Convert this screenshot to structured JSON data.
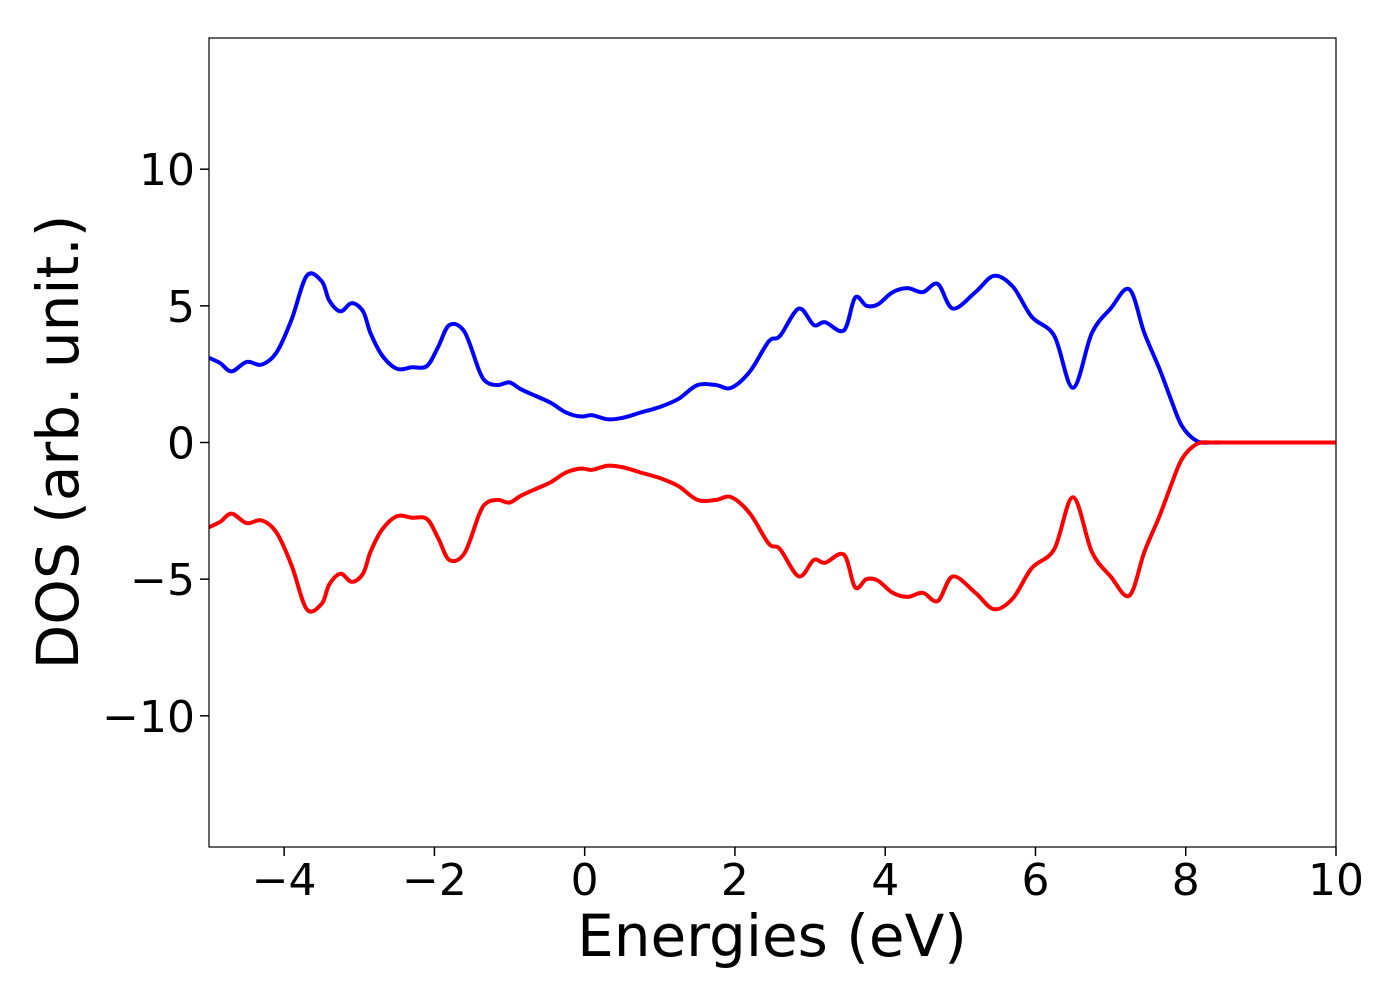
{
  "chart_data": {
    "type": "line",
    "title": "",
    "xlabel": "Energies (eV)",
    "ylabel": "DOS (arb. unit.)",
    "xlim": [
      -5,
      10
    ],
    "ylim": [
      -14.8,
      14.8
    ],
    "grid": false,
    "legend": "none",
    "xticks": [
      -4,
      -2,
      0,
      2,
      4,
      6,
      8,
      10
    ],
    "xtick_labels": [
      "−4",
      "−2",
      "0",
      "2",
      "4",
      "6",
      "8",
      "10"
    ],
    "yticks": [
      -10,
      -5,
      0,
      5,
      10
    ],
    "ytick_labels": [
      "−10",
      "−5",
      "0",
      "5",
      "10"
    ],
    "series": [
      {
        "color": "#0000ff",
        "x": [
          -5.0,
          -4.85,
          -4.7,
          -4.5,
          -4.3,
          -4.1,
          -3.9,
          -3.7,
          -3.5,
          -3.4,
          -3.25,
          -3.1,
          -2.95,
          -2.85,
          -2.7,
          -2.5,
          -2.3,
          -2.1,
          -1.95,
          -1.8,
          -1.6,
          -1.4,
          -1.3,
          -1.15,
          -1.0,
          -0.85,
          -0.65,
          -0.45,
          -0.25,
          -0.05,
          0.1,
          0.3,
          0.5,
          0.75,
          1.0,
          1.25,
          1.5,
          1.75,
          1.95,
          2.2,
          2.45,
          2.6,
          2.85,
          3.05,
          3.2,
          3.45,
          3.6,
          3.75,
          3.9,
          4.1,
          4.3,
          4.5,
          4.7,
          4.9,
          5.2,
          5.45,
          5.7,
          5.95,
          6.25,
          6.5,
          6.75,
          7.0,
          7.25,
          7.45,
          7.65,
          7.8,
          7.95,
          8.15,
          8.35,
          8.55,
          8.75,
          8.95,
          9.15,
          9.35,
          9.55,
          9.75,
          10.0
        ],
        "y": [
          3.1,
          2.9,
          2.6,
          2.95,
          2.85,
          3.3,
          4.5,
          6.1,
          5.9,
          5.2,
          4.8,
          5.1,
          4.8,
          4.0,
          3.2,
          2.7,
          2.75,
          2.8,
          3.5,
          4.3,
          4.05,
          2.6,
          2.2,
          2.1,
          2.2,
          1.95,
          1.7,
          1.45,
          1.1,
          0.95,
          1.0,
          0.85,
          0.9,
          1.1,
          1.3,
          1.6,
          2.1,
          2.1,
          2.0,
          2.6,
          3.7,
          3.9,
          4.9,
          4.3,
          4.4,
          4.1,
          5.3,
          5.0,
          5.05,
          5.5,
          5.65,
          5.5,
          5.8,
          4.9,
          5.5,
          6.1,
          5.7,
          4.6,
          3.9,
          2.0,
          4.0,
          4.9,
          5.6,
          4.0,
          2.7,
          1.6,
          0.6,
          0.05,
          0.0,
          0.0,
          0.0,
          0.0,
          0.0,
          0.0,
          0.0,
          0.0,
          0.0
        ]
      },
      {
        "color": "#ff0000",
        "x": [
          -5.0,
          -4.85,
          -4.7,
          -4.5,
          -4.3,
          -4.1,
          -3.9,
          -3.7,
          -3.5,
          -3.4,
          -3.25,
          -3.1,
          -2.95,
          -2.85,
          -2.7,
          -2.5,
          -2.3,
          -2.1,
          -1.95,
          -1.8,
          -1.6,
          -1.4,
          -1.3,
          -1.15,
          -1.0,
          -0.85,
          -0.65,
          -0.45,
          -0.25,
          -0.05,
          0.1,
          0.3,
          0.5,
          0.75,
          1.0,
          1.25,
          1.5,
          1.75,
          1.95,
          2.2,
          2.45,
          2.6,
          2.85,
          3.05,
          3.2,
          3.45,
          3.6,
          3.75,
          3.9,
          4.1,
          4.3,
          4.5,
          4.7,
          4.9,
          5.2,
          5.45,
          5.7,
          5.95,
          6.25,
          6.5,
          6.75,
          7.0,
          7.25,
          7.45,
          7.65,
          7.8,
          7.95,
          8.15,
          8.35,
          8.55,
          8.75,
          8.95,
          9.15,
          9.35,
          9.55,
          9.75,
          10.0
        ],
        "y": [
          -3.1,
          -2.9,
          -2.6,
          -2.95,
          -2.85,
          -3.3,
          -4.5,
          -6.1,
          -5.9,
          -5.2,
          -4.8,
          -5.1,
          -4.8,
          -4.0,
          -3.2,
          -2.7,
          -2.75,
          -2.8,
          -3.5,
          -4.3,
          -4.05,
          -2.6,
          -2.2,
          -2.1,
          -2.2,
          -1.95,
          -1.7,
          -1.45,
          -1.1,
          -0.95,
          -1.0,
          -0.85,
          -0.9,
          -1.1,
          -1.3,
          -1.6,
          -2.1,
          -2.1,
          -2.0,
          -2.6,
          -3.7,
          -3.9,
          -4.9,
          -4.3,
          -4.4,
          -4.1,
          -5.3,
          -5.0,
          -5.05,
          -5.5,
          -5.65,
          -5.5,
          -5.8,
          -4.9,
          -5.5,
          -6.1,
          -5.7,
          -4.6,
          -3.9,
          -2.0,
          -4.0,
          -4.9,
          -5.6,
          -4.0,
          -2.7,
          -1.6,
          -0.6,
          -0.05,
          0.0,
          0.0,
          0.0,
          0.0,
          0.0,
          0.0,
          0.0,
          0.0,
          0.0
        ]
      }
    ]
  }
}
